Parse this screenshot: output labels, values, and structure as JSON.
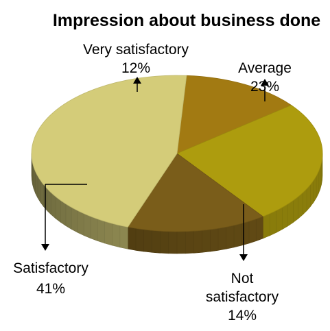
{
  "chart_data": {
    "type": "pie",
    "title": "Impression about business done",
    "slices": [
      {
        "label": "Very satisfactory",
        "value": 12,
        "value_label": "12%",
        "color": "#A27A12"
      },
      {
        "label": "Average",
        "value": 23,
        "value_label": "23%",
        "color": "#AD9C0E"
      },
      {
        "label": "Not satisfactory",
        "value": 14,
        "value_label": "14%",
        "color": "#7A5D1A"
      },
      {
        "label": "Satisfactory",
        "value": 41,
        "value_label": "41%",
        "color": "#D4CC79"
      }
    ],
    "style": "3d",
    "legend": "none"
  }
}
